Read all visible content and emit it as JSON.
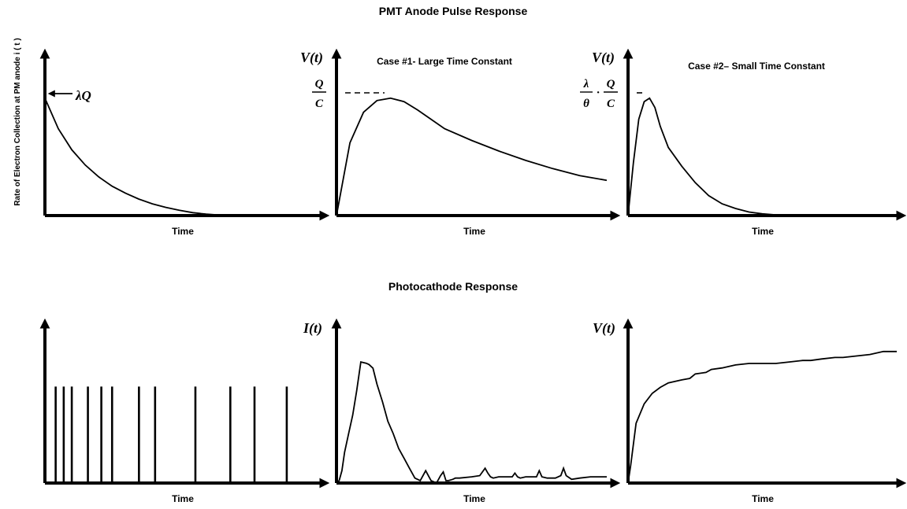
{
  "sections": {
    "top_title": "PMT Anode Pulse Response",
    "bottom_title": "Photocathode Response"
  },
  "colors": {
    "ink": "#000000",
    "background": "#ffffff"
  },
  "panels": {
    "p1": {
      "xlabel": "Time",
      "ylabel": "Rate of Electron Collection at PM anode  i ( t )",
      "annotation": "λQ"
    },
    "p2": {
      "xlabel": "Time",
      "ylabel": "V(t)",
      "subtitle": "Case #1- Large Time Constant",
      "peak_num": "Q",
      "peak_den": "C"
    },
    "p3": {
      "xlabel": "Time",
      "ylabel": "V(t)",
      "subtitle": "Case #2– Small Time Constant",
      "peak_a_num": "λ",
      "peak_a_den": "θ",
      "dot": "·",
      "peak_b_num": "Q",
      "peak_b_den": "C"
    },
    "p4": {
      "xlabel": "Time"
    },
    "p5": {
      "xlabel": "Time",
      "ylabel": "I(t)"
    },
    "p6": {
      "xlabel": "Time",
      "ylabel": "V(t)"
    }
  },
  "chart_data": [
    {
      "type": "line",
      "name": "electron-collection-rate",
      "x": [
        0,
        0.05,
        0.1,
        0.15,
        0.2,
        0.25,
        0.3,
        0.35,
        0.4,
        0.45,
        0.5,
        0.55,
        0.6,
        0.65,
        0.7,
        1.0
      ],
      "y": [
        1.0,
        0.74,
        0.56,
        0.43,
        0.33,
        0.25,
        0.19,
        0.14,
        0.1,
        0.07,
        0.045,
        0.025,
        0.012,
        0.004,
        0.0,
        0.0
      ],
      "xlim": [
        0,
        1
      ],
      "ylim": [
        0,
        1.3
      ]
    },
    {
      "type": "line",
      "name": "case1-large-time-constant",
      "x": [
        0,
        0.05,
        0.1,
        0.15,
        0.2,
        0.25,
        0.3,
        0.35,
        0.4,
        0.5,
        0.6,
        0.7,
        0.8,
        0.9,
        1.0
      ],
      "y": [
        0.0,
        0.62,
        0.88,
        0.98,
        1.0,
        0.97,
        0.9,
        0.82,
        0.74,
        0.64,
        0.55,
        0.47,
        0.4,
        0.34,
        0.3
      ],
      "xlim": [
        0,
        1
      ],
      "ylim": [
        0,
        1.3
      ]
    },
    {
      "type": "line",
      "name": "case2-small-time-constant",
      "x": [
        0,
        0.02,
        0.04,
        0.06,
        0.08,
        0.1,
        0.12,
        0.15,
        0.2,
        0.25,
        0.3,
        0.35,
        0.4,
        0.45,
        0.5,
        0.55,
        0.6
      ],
      "y": [
        0.0,
        0.45,
        0.82,
        0.97,
        1.0,
        0.92,
        0.76,
        0.58,
        0.42,
        0.28,
        0.17,
        0.1,
        0.06,
        0.03,
        0.015,
        0.006,
        0.003
      ],
      "xlim": [
        0,
        1
      ],
      "ylim": [
        0,
        1.3
      ]
    },
    {
      "type": "bar",
      "name": "photoelectron-spikes",
      "x": [
        0.04,
        0.07,
        0.1,
        0.16,
        0.21,
        0.25,
        0.35,
        0.41,
        0.56,
        0.69,
        0.78,
        0.9
      ],
      "values": [
        1,
        1,
        1,
        1,
        1,
        1,
        1,
        1,
        1,
        1,
        1,
        1
      ],
      "xlim": [
        0,
        1
      ],
      "ylim": [
        0,
        1.55
      ]
    },
    {
      "type": "line",
      "name": "photocathode-current",
      "x": [
        0.0,
        0.01,
        0.02,
        0.03,
        0.045,
        0.06,
        0.075,
        0.09,
        0.11,
        0.12,
        0.135,
        0.15,
        0.17,
        0.19,
        0.21,
        0.23,
        0.25,
        0.27,
        0.29,
        0.31,
        0.33,
        0.35,
        0.37,
        0.385,
        0.395,
        0.405,
        0.415,
        0.43,
        0.44,
        0.455,
        0.5,
        0.53,
        0.55,
        0.56,
        0.57,
        0.58,
        0.6,
        0.65,
        0.66,
        0.67,
        0.68,
        0.7,
        0.74,
        0.75,
        0.76,
        0.78,
        0.81,
        0.83,
        0.84,
        0.85,
        0.87,
        0.9,
        0.94,
        1.0
      ],
      "y": [
        0.0,
        0.02,
        0.1,
        0.25,
        0.4,
        0.55,
        0.75,
        0.98,
        0.97,
        0.96,
        0.93,
        0.8,
        0.66,
        0.5,
        0.4,
        0.28,
        0.2,
        0.12,
        0.04,
        0.02,
        0.1,
        0.02,
        0.0,
        0.06,
        0.09,
        0.02,
        0.02,
        0.03,
        0.04,
        0.04,
        0.05,
        0.06,
        0.12,
        0.08,
        0.05,
        0.04,
        0.05,
        0.05,
        0.08,
        0.05,
        0.04,
        0.05,
        0.05,
        0.1,
        0.05,
        0.04,
        0.04,
        0.06,
        0.12,
        0.06,
        0.03,
        0.04,
        0.05,
        0.05
      ],
      "xlim": [
        0,
        1
      ],
      "ylim": [
        0,
        1.0
      ]
    },
    {
      "type": "line",
      "name": "photocathode-voltage",
      "x": [
        0.0,
        0.01,
        0.03,
        0.06,
        0.09,
        0.12,
        0.15,
        0.2,
        0.23,
        0.25,
        0.29,
        0.31,
        0.35,
        0.4,
        0.45,
        0.55,
        0.6,
        0.65,
        0.68,
        0.72,
        0.77,
        0.8,
        0.85,
        0.9,
        0.95,
        1.0
      ],
      "y": [
        0.0,
        0.12,
        0.4,
        0.53,
        0.6,
        0.64,
        0.67,
        0.69,
        0.7,
        0.73,
        0.74,
        0.76,
        0.77,
        0.79,
        0.8,
        0.8,
        0.81,
        0.82,
        0.82,
        0.83,
        0.84,
        0.84,
        0.85,
        0.86,
        0.88,
        0.88
      ],
      "xlim": [
        0,
        1
      ],
      "ylim": [
        0,
        1.0
      ]
    }
  ]
}
